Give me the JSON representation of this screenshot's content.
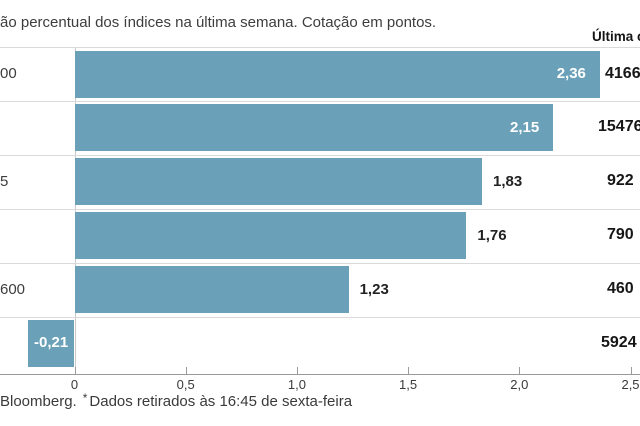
{
  "title": "ão percentual dos índices na última semana. Cotação em pontos.",
  "right_column_header": "Última c",
  "footer": {
    "source": "Bloomberg.",
    "asterisk": "*",
    "note": "Dados retirados às 16:45 de sexta-feira"
  },
  "colors": {
    "bar": "#6ba1b8",
    "value_inside": "#ffffff",
    "value_outside": "#222222",
    "separator": "#dadada",
    "axis_line": "#9a9a9a",
    "zero_line": "#c9c9c9",
    "text": "#3d3d3d"
  },
  "chart_data": {
    "type": "bar",
    "orientation": "horizontal",
    "title": "ão percentual dos índices na última semana. Cotação em pontos.",
    "xlabel": "",
    "ylabel": "",
    "xlim": [
      -0.3,
      2.5
    ],
    "grid": false,
    "rows": [
      {
        "label_fragment": "00",
        "value": 2.36,
        "value_label": "2,36",
        "value_inside_bar": true,
        "last_quote_visible": "4166"
      },
      {
        "label_fragment": "",
        "value": 2.15,
        "value_label": "2,15",
        "value_inside_bar": true,
        "last_quote_visible": "15476"
      },
      {
        "label_fragment": "5",
        "value": 1.83,
        "value_label": "1,83",
        "value_inside_bar": false,
        "last_quote_visible": "922"
      },
      {
        "label_fragment": "",
        "value": 1.76,
        "value_label": "1,76",
        "value_inside_bar": false,
        "last_quote_visible": "790"
      },
      {
        "label_fragment": "600",
        "value": 1.23,
        "value_label": "1,23",
        "value_inside_bar": false,
        "last_quote_visible": "460"
      },
      {
        "label_fragment": "",
        "value": -0.21,
        "value_label": "-0,21",
        "value_inside_bar": true,
        "last_quote_visible": "5924"
      }
    ],
    "x_axis": {
      "tick_labels": [
        "0",
        "0,5",
        "1,0",
        "1,5",
        "2,0",
        "2,5"
      ],
      "tick_values": [
        0,
        0.5,
        1.0,
        1.5,
        2.0,
        2.5
      ]
    }
  }
}
